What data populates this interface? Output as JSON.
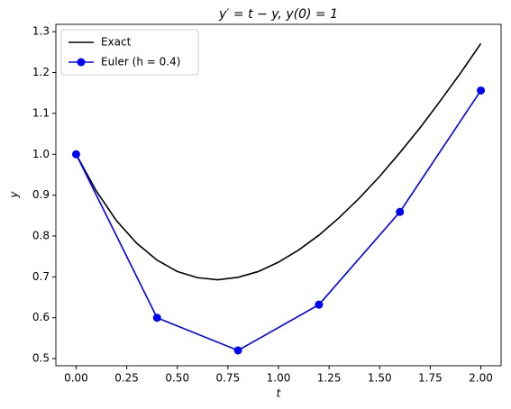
{
  "chart_data": {
    "type": "line",
    "title": "y′ = t − y, y(0) = 1",
    "xlabel": "t",
    "ylabel": "y",
    "legend": "upper left",
    "grid": false,
    "xlim": [
      -0.1,
      2.1
    ],
    "ylim": [
      0.4825,
      1.318
    ],
    "xticks": [
      {
        "value": 0,
        "label": "0.00"
      },
      {
        "value": 0.25,
        "label": "0.25"
      },
      {
        "value": 0.5,
        "label": "0.50"
      },
      {
        "value": 0.75,
        "label": "0.75"
      },
      {
        "value": 1,
        "label": "1.00"
      },
      {
        "value": 1.25,
        "label": "1.25"
      },
      {
        "value": 1.5,
        "label": "1.50"
      },
      {
        "value": 1.75,
        "label": "1.75"
      },
      {
        "value": 2,
        "label": "2.00"
      }
    ],
    "yticks": [
      0.5,
      0.6,
      0.7,
      0.8,
      0.9,
      {
        "value": 1,
        "label": "1.0"
      },
      1.1,
      1.2,
      1.3
    ],
    "series": [
      {
        "name": "Exact",
        "color": "#000000",
        "marker": false,
        "x": [
          0,
          0.1,
          0.2,
          0.3,
          0.4,
          0.5,
          0.6,
          0.7,
          0.8,
          0.9,
          1.0,
          1.1,
          1.2,
          1.3,
          1.4,
          1.5,
          1.6,
          1.7,
          1.8,
          1.9,
          2.0
        ],
        "values": [
          1.0,
          0.91,
          0.837,
          0.782,
          0.741,
          0.713,
          0.698,
          0.693,
          0.699,
          0.713,
          0.736,
          0.766,
          0.802,
          0.845,
          0.893,
          0.946,
          1.004,
          1.065,
          1.131,
          1.199,
          1.271
        ]
      },
      {
        "name": "Euler (h = 0.4)",
        "color": "#0000ff",
        "marker": true,
        "x": [
          0,
          0.4,
          0.8,
          1.2,
          1.6,
          2.0
        ],
        "values": [
          1.0,
          0.6,
          0.52,
          0.632,
          0.859,
          1.156
        ]
      }
    ]
  }
}
